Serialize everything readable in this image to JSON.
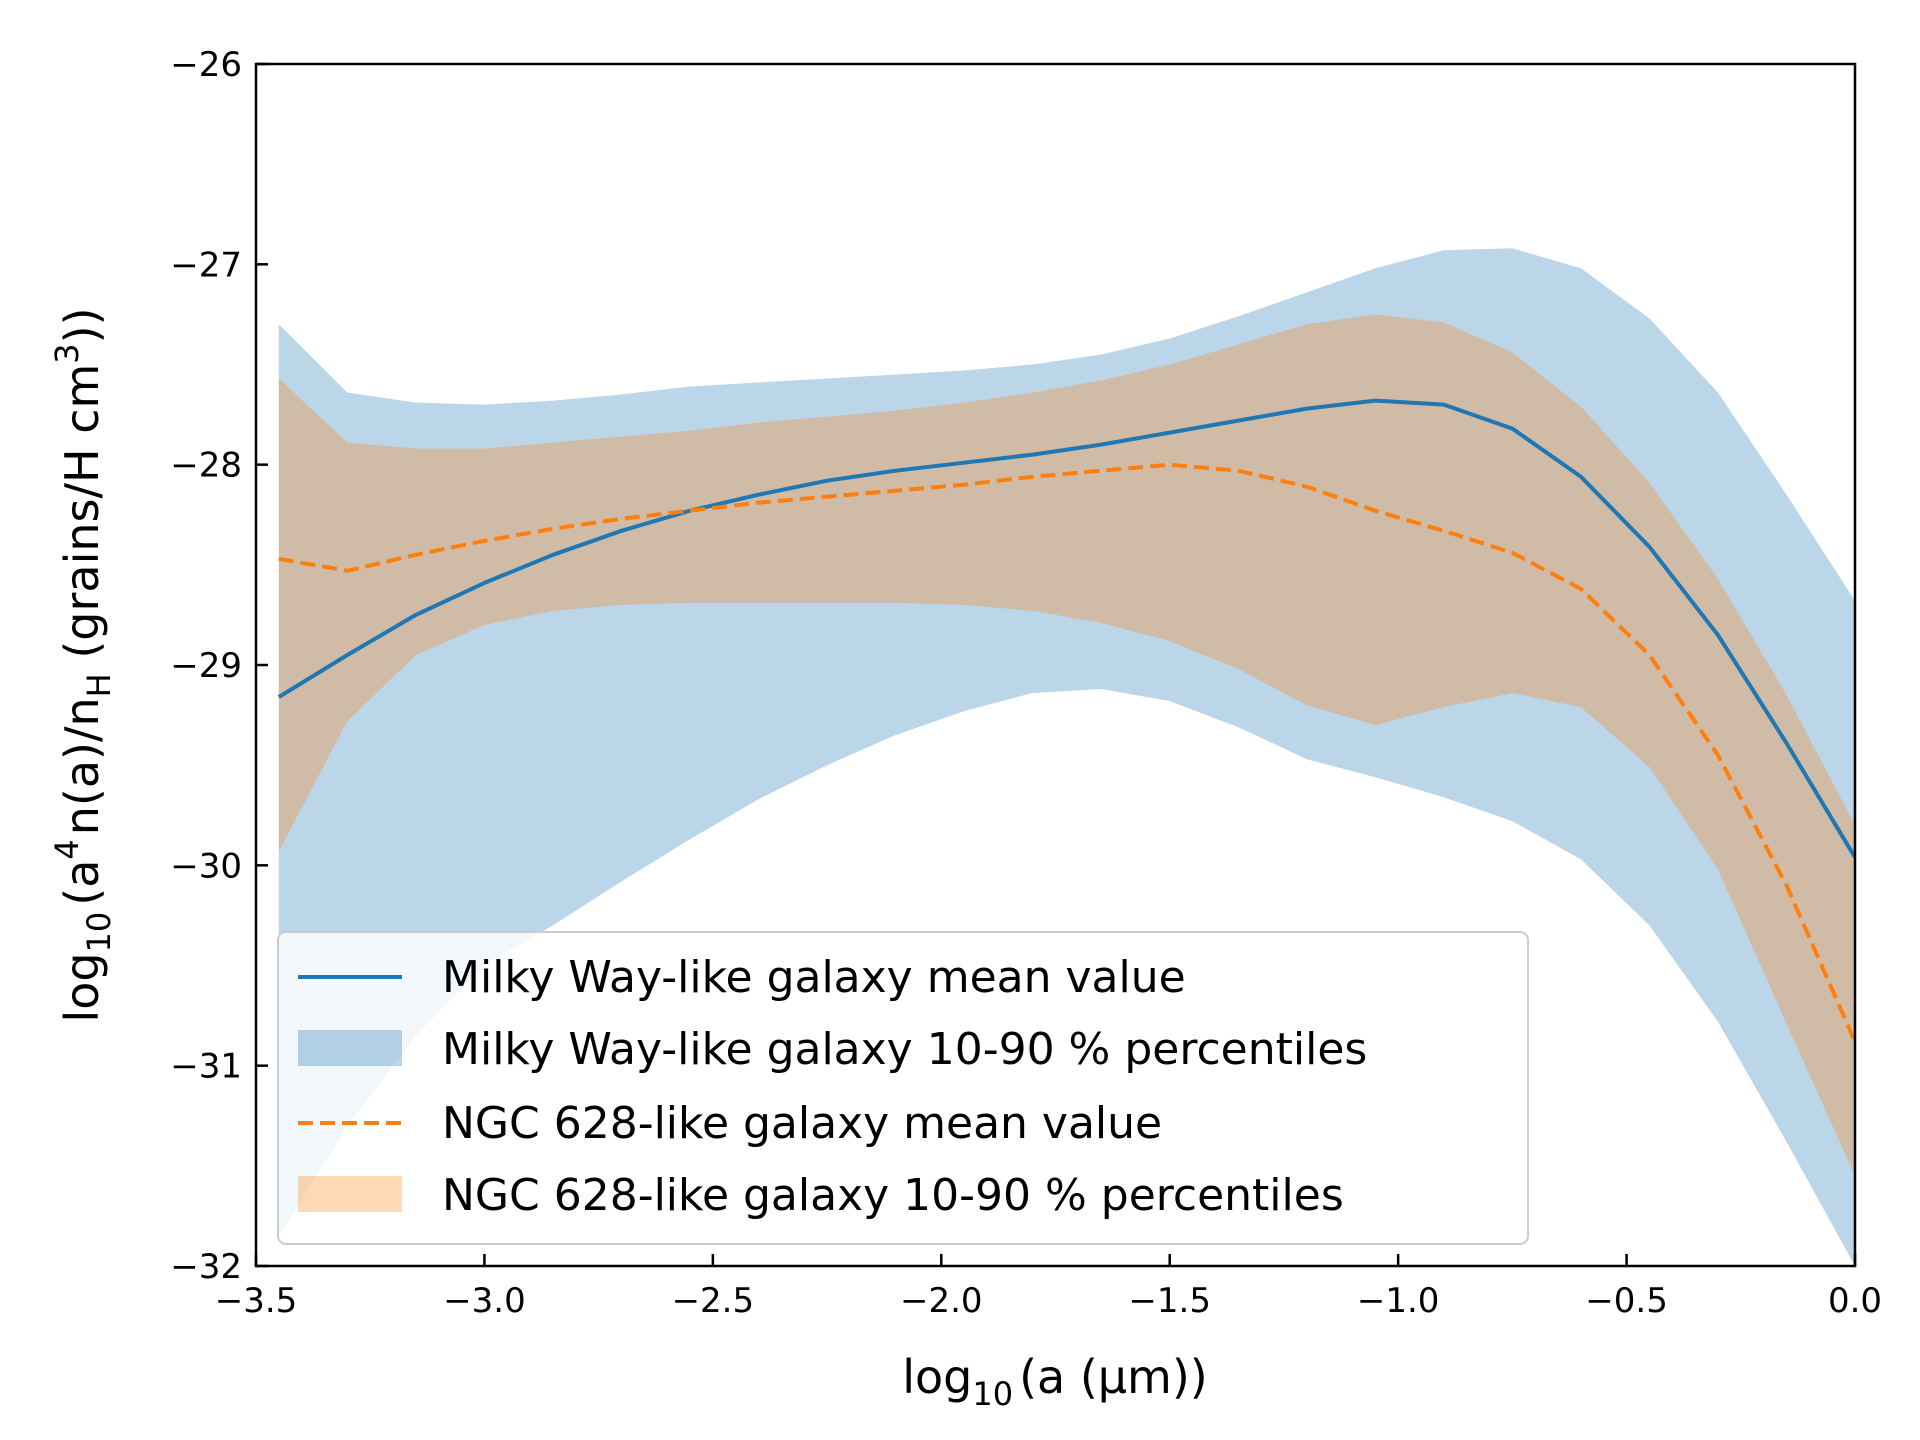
{
  "chart_data": {
    "type": "line",
    "title": "",
    "xlabel": {
      "pre": "log",
      "sub": "10",
      "post": "(a (µm))"
    },
    "ylabel": {
      "p1": "log",
      "s1": "10",
      "p2": "(a",
      "s2": "4",
      "p3": "n(a)/n",
      "s3": "H",
      "p4": " (grains/H cm",
      "s4": "3",
      "p5": "))"
    },
    "xlim": [
      -3.5,
      0.0
    ],
    "ylim": [
      -32,
      -26
    ],
    "xticks": [
      -3.5,
      -3.0,
      -2.5,
      -2.0,
      -1.5,
      -1.0,
      -0.5,
      0.0
    ],
    "xtick_labels": [
      "−3.5",
      "−3.0",
      "−2.5",
      "−2.0",
      "−1.5",
      "−1.0",
      "−0.5",
      "0.0"
    ],
    "yticks": [
      -32,
      -31,
      -30,
      -29,
      -28,
      -27,
      -26
    ],
    "ytick_labels": [
      "−32",
      "−31",
      "−30",
      "−29",
      "−28",
      "−27",
      "−26"
    ],
    "x": [
      -3.45,
      -3.3,
      -3.15,
      -3.0,
      -2.85,
      -2.7,
      -2.55,
      -2.4,
      -2.25,
      -2.1,
      -1.95,
      -1.8,
      -1.65,
      -1.5,
      -1.35,
      -1.2,
      -1.05,
      -0.9,
      -0.75,
      -0.6,
      -0.45,
      -0.3,
      -0.15,
      0.0
    ],
    "series": [
      {
        "name": "Milky Way-like galaxy mean value",
        "kind": "line",
        "style": "solid",
        "color": "#1f77b4",
        "values": [
          -29.16,
          -28.95,
          -28.75,
          -28.59,
          -28.45,
          -28.33,
          -28.23,
          -28.15,
          -28.08,
          -28.03,
          -27.99,
          -27.95,
          -27.9,
          -27.84,
          -27.78,
          -27.72,
          -27.68,
          -27.7,
          -27.82,
          -28.06,
          -28.41,
          -28.85,
          -29.39,
          -29.96
        ]
      },
      {
        "name": "Milky Way-like galaxy 10-90 % percentiles",
        "kind": "band",
        "color": "#1f77b4",
        "opacity": 0.3,
        "lower": [
          -31.85,
          -31.3,
          -30.85,
          -30.5,
          -30.3,
          -30.08,
          -29.87,
          -29.67,
          -29.5,
          -29.35,
          -29.23,
          -29.14,
          -29.12,
          -29.18,
          -29.31,
          -29.47,
          -29.56,
          -29.66,
          -29.78,
          -29.97,
          -30.3,
          -30.78,
          -31.38,
          -32.0
        ],
        "upper": [
          -27.3,
          -27.64,
          -27.69,
          -27.7,
          -27.68,
          -27.65,
          -27.61,
          -27.59,
          -27.57,
          -27.55,
          -27.53,
          -27.5,
          -27.45,
          -27.37,
          -27.26,
          -27.14,
          -27.02,
          -26.93,
          -26.92,
          -27.02,
          -27.27,
          -27.64,
          -28.15,
          -28.68
        ]
      },
      {
        "name": "NGC 628-like galaxy mean value",
        "kind": "line",
        "style": "dashed",
        "color": "#ff7f0e",
        "values": [
          -28.47,
          -28.53,
          -28.45,
          -28.38,
          -28.32,
          -28.27,
          -28.23,
          -28.19,
          -28.16,
          -28.13,
          -28.1,
          -28.06,
          -28.03,
          -28.0,
          -28.03,
          -28.11,
          -28.23,
          -28.33,
          -28.44,
          -28.62,
          -28.95,
          -29.45,
          -30.1,
          -30.88
        ]
      },
      {
        "name": "NGC 628-like galaxy 10-90 % percentiles",
        "kind": "band",
        "color": "#ff7f0e",
        "opacity": 0.3,
        "lower": [
          -29.93,
          -29.28,
          -28.95,
          -28.8,
          -28.73,
          -28.7,
          -28.69,
          -28.69,
          -28.69,
          -28.69,
          -28.7,
          -28.73,
          -28.79,
          -28.88,
          -29.02,
          -29.2,
          -29.3,
          -29.21,
          -29.14,
          -29.21,
          -29.51,
          -30.02,
          -30.79,
          -31.55
        ],
        "upper": [
          -27.57,
          -27.89,
          -27.92,
          -27.92,
          -27.89,
          -27.86,
          -27.83,
          -27.79,
          -27.76,
          -27.73,
          -27.69,
          -27.64,
          -27.58,
          -27.5,
          -27.4,
          -27.3,
          -27.25,
          -27.29,
          -27.44,
          -27.71,
          -28.09,
          -28.57,
          -29.15,
          -29.8
        ]
      }
    ],
    "legend": {
      "placement": "lower-left",
      "entries": [
        "Milky Way-like galaxy mean value",
        "Milky Way-like galaxy 10-90 % percentiles",
        "NGC 628-like galaxy mean value",
        "NGC 628-like galaxy 10-90 % percentiles"
      ]
    }
  }
}
